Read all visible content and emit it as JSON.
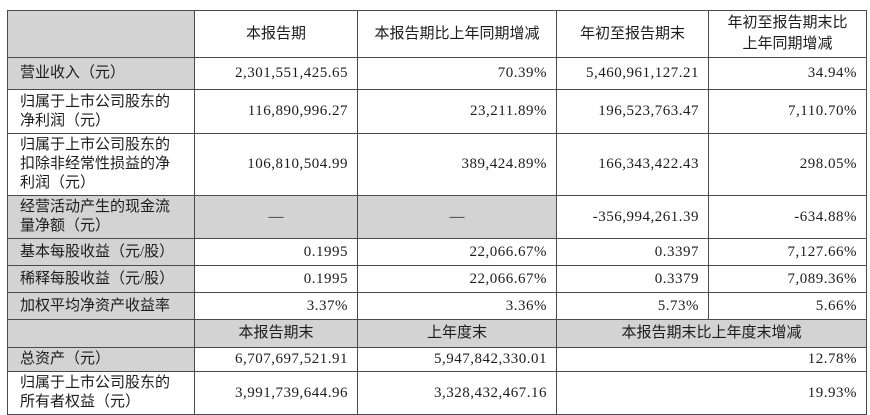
{
  "colors": {
    "shaded_cell": "#d3d3d3",
    "border": "#4a4a4a",
    "text": "#1c1c1c",
    "background": "#ffffff"
  },
  "period_table": {
    "corner": "",
    "headers": [
      "本报告期",
      "本报告期比上年同期增减",
      "年初至报告期末",
      "年初至报告期末比上年同期增减"
    ],
    "rows": [
      {
        "label": "营业收入（元）",
        "values": [
          "2,301,551,425.65",
          "70.39%",
          "5,460,961,127.21",
          "34.94%"
        ]
      },
      {
        "label": "归属于上市公司股东的净利润（元）",
        "values": [
          "116,890,996.27",
          "23,211.89%",
          "196,523,763.47",
          "7,110.70%"
        ]
      },
      {
        "label": "归属于上市公司股东的扣除非经常性损益的净利润（元）",
        "values": [
          "106,810,504.99",
          "389,424.89%",
          "166,343,422.43",
          "298.05%"
        ]
      },
      {
        "label": "经营活动产生的现金流量净额（元）",
        "values": [
          "—",
          "—",
          "-356,994,261.39",
          "-634.88%"
        ]
      },
      {
        "label": "基本每股收益（元/股）",
        "values": [
          "0.1995",
          "22,066.67%",
          "0.3397",
          "7,127.66%"
        ]
      },
      {
        "label": "稀释每股收益（元/股）",
        "values": [
          "0.1995",
          "22,066.67%",
          "0.3379",
          "7,089.36%"
        ]
      },
      {
        "label": "加权平均净资产收益率",
        "values": [
          "3.37%",
          "3.36%",
          "5.73%",
          "5.66%"
        ]
      }
    ]
  },
  "yearend_table": {
    "corner": "",
    "headers": [
      "本报告期末",
      "上年度末",
      "本报告期末比上年度末增减"
    ],
    "rows": [
      {
        "label": "总资产（元）",
        "values": [
          "6,707,697,521.91",
          "5,947,842,330.01",
          "12.78%"
        ]
      },
      {
        "label": "归属于上市公司股东的所有者权益（元）",
        "values": [
          "3,991,739,644.96",
          "3,328,432,467.16",
          "19.93%"
        ]
      }
    ]
  }
}
